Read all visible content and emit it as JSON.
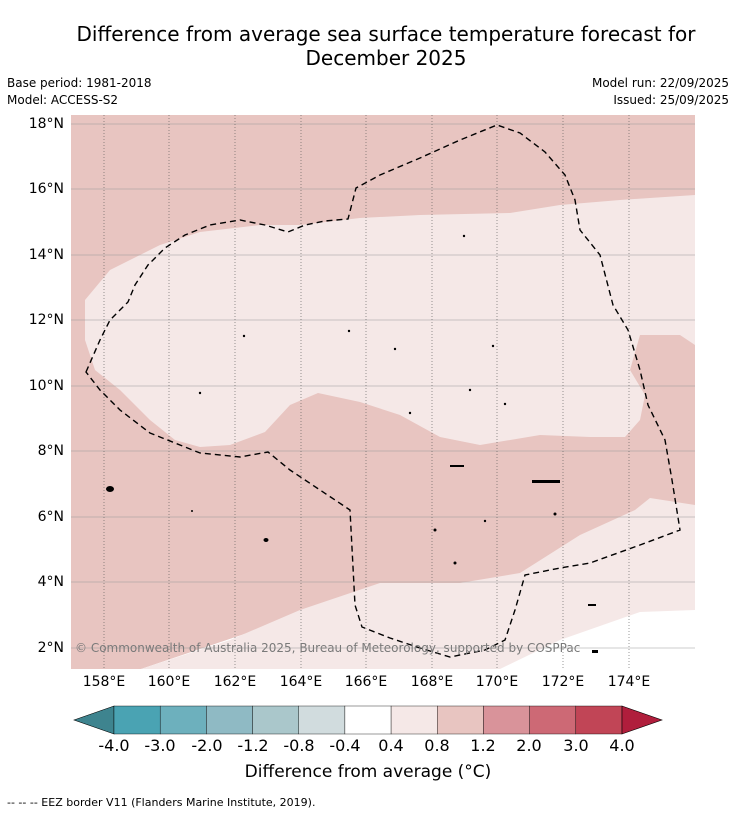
{
  "title": {
    "line1": "Difference from average sea surface temperature forecast for",
    "line2": "December 2025"
  },
  "meta": {
    "base_period": "Base period: 1981-2018",
    "model": "Model: ACCESS-S2",
    "model_run": "Model run: 22/09/2025",
    "issued": "Issued: 25/09/2025"
  },
  "map": {
    "lat_labels": [
      "18°N",
      "16°N",
      "14°N",
      "12°N",
      "10°N",
      "8°N",
      "6°N",
      "4°N",
      "2°N"
    ],
    "lon_labels": [
      "158°E",
      "160°E",
      "162°E",
      "164°E",
      "166°E",
      "168°E",
      "170°E",
      "172°E",
      "174°E"
    ],
    "copyright": "© Commonwealth of Australia 2025, Bureau of Meteorology, supported by COSPPac",
    "colors": {
      "band_0_4_0_8": "#f5e8e7",
      "band_0_8_1_2": "#e8c5c1",
      "land": "#000000"
    }
  },
  "colorbar": {
    "label": "Difference from average (°C)",
    "ticks": [
      "-4.0",
      "-3.0",
      "-2.0",
      "-1.2",
      "-0.8",
      "-0.4",
      "0.4",
      "0.8",
      "1.2",
      "2.0",
      "3.0",
      "4.0"
    ],
    "colors": [
      "#3e848f",
      "#4aa3b3",
      "#6db0bd",
      "#8fbac4",
      "#aac7cb",
      "#d1dcde",
      "#ffffff",
      "#f5e8e7",
      "#e8c5c1",
      "#d9939a",
      "#cd6975",
      "#c14556",
      "#b01e3c"
    ]
  },
  "footer": {
    "legend": "--  --  -- EEZ border V11 (Flanders Marine Institute, 2019)."
  }
}
